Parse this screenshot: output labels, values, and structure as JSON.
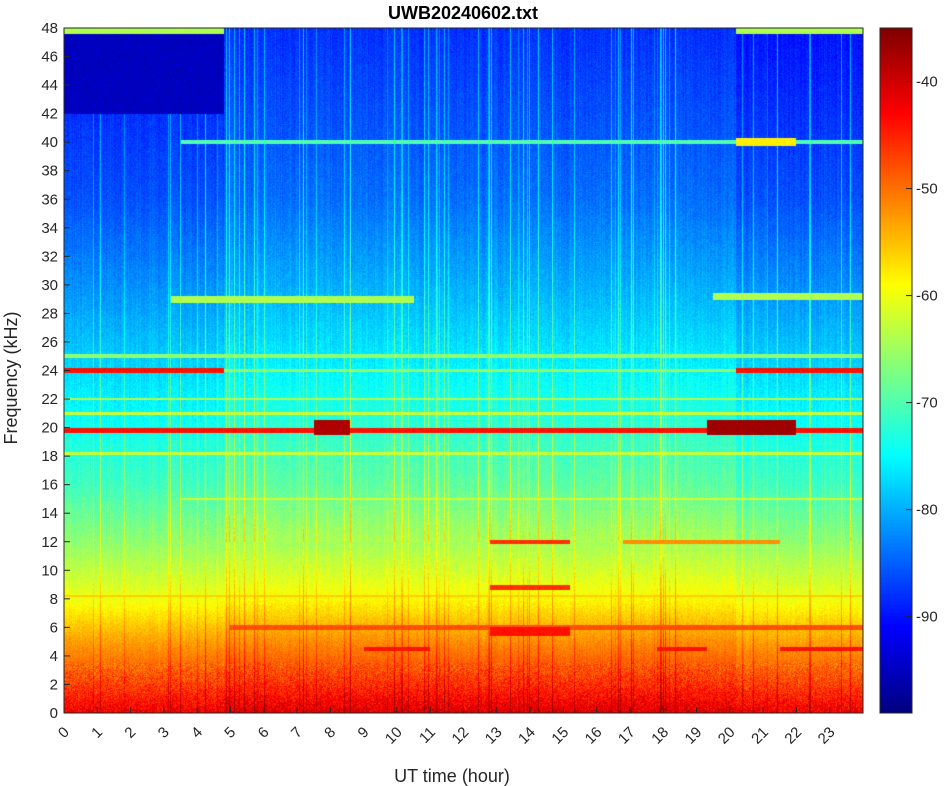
{
  "chart_data": {
    "type": "heatmap",
    "title": "UWB20240602.txt",
    "xlabel": "UT time (hour)",
    "ylabel": "Frequency (kHz)",
    "xlim": [
      0,
      24
    ],
    "ylim": [
      0,
      48
    ],
    "x_ticks": [
      0,
      1,
      2,
      3,
      4,
      5,
      6,
      7,
      8,
      9,
      10,
      11,
      12,
      13,
      14,
      15,
      16,
      17,
      18,
      19,
      20,
      21,
      22,
      23
    ],
    "y_ticks": [
      0,
      2,
      4,
      6,
      8,
      10,
      12,
      14,
      16,
      18,
      20,
      22,
      24,
      26,
      28,
      30,
      32,
      34,
      36,
      38,
      40,
      42,
      44,
      46,
      48
    ],
    "colorbar": {
      "ticks": [
        -40,
        -50,
        -60,
        -70,
        -80,
        -90
      ],
      "range": [
        -99,
        -35
      ],
      "colormap": "jet"
    },
    "background_profile": [
      {
        "f": 0,
        "level": -42
      },
      {
        "f": 2,
        "level": -47
      },
      {
        "f": 5,
        "level": -53
      },
      {
        "f": 8,
        "level": -60
      },
      {
        "f": 12,
        "level": -66
      },
      {
        "f": 16,
        "level": -71
      },
      {
        "f": 20,
        "level": -74
      },
      {
        "f": 26,
        "level": -79
      },
      {
        "f": 30,
        "level": -82
      },
      {
        "f": 36,
        "level": -86
      },
      {
        "f": 42,
        "level": -88
      },
      {
        "f": 48,
        "level": -90
      }
    ],
    "quiet_region": {
      "t0": 0,
      "t1": 4.8,
      "f0": 42,
      "f1": 47.6,
      "level": -95
    },
    "bands": [
      {
        "f": 47.8,
        "t0": 0,
        "t1": 4.8,
        "level": -64,
        "width": 0.4
      },
      {
        "f": 47.8,
        "t0": 20.2,
        "t1": 24,
        "level": -64,
        "width": 0.4
      },
      {
        "f": 40.0,
        "t0": 3.5,
        "t1": 24,
        "level": -70,
        "width": 0.3
      },
      {
        "f": 40.0,
        "t0": 20.2,
        "t1": 22.0,
        "level": -58,
        "width": 0.6
      },
      {
        "f": 29.0,
        "t0": 3.2,
        "t1": 10.5,
        "level": -64,
        "width": 0.5
      },
      {
        "f": 29.2,
        "t0": 19.5,
        "t1": 24,
        "level": -64,
        "width": 0.5
      },
      {
        "f": 25.0,
        "t0": 0,
        "t1": 24,
        "level": -66,
        "width": 0.25
      },
      {
        "f": 24.0,
        "t0": 0,
        "t1": 4.8,
        "level": -44,
        "width": 0.4
      },
      {
        "f": 24.0,
        "t0": 20.2,
        "t1": 24,
        "level": -44,
        "width": 0.4
      },
      {
        "f": 24.0,
        "t0": 4.8,
        "t1": 20.2,
        "level": -66,
        "width": 0.25
      },
      {
        "f": 22.0,
        "t0": 0,
        "t1": 24,
        "level": -64,
        "width": 0.2
      },
      {
        "f": 21.0,
        "t0": 0,
        "t1": 24,
        "level": -62,
        "width": 0.2
      },
      {
        "f": 19.8,
        "t0": 0,
        "t1": 24,
        "level": -44,
        "width": 0.35
      },
      {
        "f": 20.0,
        "t0": 7.5,
        "t1": 8.6,
        "level": -38,
        "width": 1.0
      },
      {
        "f": 20.0,
        "t0": 19.3,
        "t1": 22.0,
        "level": -37,
        "width": 1.0
      },
      {
        "f": 18.2,
        "t0": 0,
        "t1": 24,
        "level": -62,
        "width": 0.2
      },
      {
        "f": 15.0,
        "t0": 3.5,
        "t1": 24,
        "level": -62,
        "width": 0.2
      },
      {
        "f": 12.0,
        "t0": 12.8,
        "t1": 15.2,
        "level": -46,
        "width": 0.3
      },
      {
        "f": 12.0,
        "t0": 16.8,
        "t1": 21.5,
        "level": -52,
        "width": 0.3
      },
      {
        "f": 8.8,
        "t0": 12.8,
        "t1": 15.2,
        "level": -46,
        "width": 0.3
      },
      {
        "f": 8.2,
        "t0": 0,
        "t1": 24,
        "level": -56,
        "width": 0.2
      },
      {
        "f": 6.0,
        "t0": 5.0,
        "t1": 24,
        "level": -48,
        "width": 0.3
      },
      {
        "f": 5.7,
        "t0": 12.8,
        "t1": 15.2,
        "level": -44,
        "width": 0.6
      },
      {
        "f": 4.5,
        "t0": 9.0,
        "t1": 11.0,
        "level": -44,
        "width": 0.3
      },
      {
        "f": 4.5,
        "t0": 17.8,
        "t1": 19.3,
        "level": -44,
        "width": 0.3
      },
      {
        "f": 4.5,
        "t0": 21.5,
        "t1": 24,
        "level": -44,
        "width": 0.3
      }
    ]
  }
}
